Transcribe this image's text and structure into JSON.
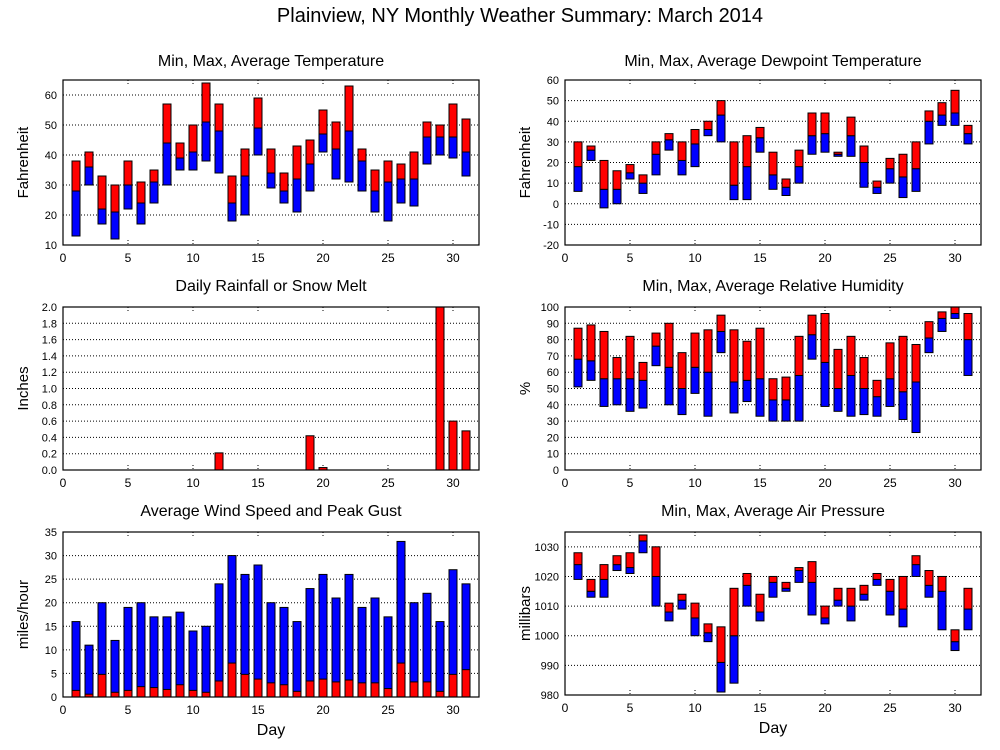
{
  "title": "Plainview, NY Monthly Weather Summary: March 2014",
  "colors": {
    "high": "#ff0000",
    "low": "#0000ff",
    "outline": "#000000",
    "grid": "#000000"
  },
  "chart_data": [
    {
      "id": "temperature",
      "type": "bar",
      "subtype": "floating-range",
      "title": "Min, Max, Average Temperature",
      "xlabel": "",
      "ylabel": "Fahrenheit",
      "xlim": [
        0,
        32
      ],
      "ylim": [
        10,
        65
      ],
      "xticks": [
        0,
        5,
        10,
        15,
        20,
        25,
        30
      ],
      "yticks": [
        10,
        20,
        30,
        40,
        50,
        60
      ],
      "grid": true,
      "x": [
        1,
        2,
        3,
        4,
        5,
        6,
        7,
        8,
        9,
        10,
        11,
        12,
        13,
        14,
        15,
        16,
        17,
        18,
        19,
        20,
        21,
        22,
        23,
        24,
        25,
        26,
        27,
        28,
        29,
        30,
        31
      ],
      "series": [
        {
          "name": "Min",
          "values": [
            13,
            30,
            17,
            12,
            22,
            17,
            24,
            30,
            35,
            35,
            38,
            34,
            18,
            20,
            40,
            29,
            24,
            21,
            28,
            41,
            32,
            31,
            28,
            21,
            18,
            24,
            23,
            37,
            40,
            39,
            33
          ]
        },
        {
          "name": "Average",
          "values": [
            28,
            36,
            22,
            21,
            30,
            24,
            31,
            44,
            39,
            41,
            51,
            48,
            24,
            33,
            49,
            34,
            28,
            32,
            37,
            47,
            42,
            48,
            38,
            28,
            31,
            32,
            32,
            46,
            46,
            46,
            41
          ]
        },
        {
          "name": "Max",
          "values": [
            38,
            41,
            33,
            30,
            38,
            31,
            35,
            57,
            44,
            50,
            64,
            57,
            33,
            42,
            59,
            42,
            34,
            43,
            45,
            55,
            51,
            63,
            42,
            35,
            38,
            37,
            41,
            51,
            50,
            57,
            52
          ]
        }
      ]
    },
    {
      "id": "dewpoint",
      "type": "bar",
      "subtype": "floating-range",
      "title": "Min, Max, Average Dewpoint Temperature",
      "xlabel": "",
      "ylabel": "Fahrenheit",
      "xlim": [
        0,
        32
      ],
      "ylim": [
        -20,
        60
      ],
      "xticks": [
        0,
        5,
        10,
        15,
        20,
        25,
        30
      ],
      "yticks": [
        -20,
        -10,
        0,
        10,
        20,
        30,
        40,
        50,
        60
      ],
      "grid": true,
      "x": [
        1,
        2,
        3,
        4,
        5,
        6,
        7,
        8,
        9,
        10,
        11,
        12,
        13,
        14,
        15,
        16,
        17,
        18,
        19,
        20,
        21,
        22,
        23,
        24,
        25,
        26,
        27,
        28,
        29,
        30,
        31
      ],
      "series": [
        {
          "name": "Min",
          "values": [
            6,
            21,
            -2,
            0,
            12,
            5,
            14,
            26,
            14,
            18,
            33,
            30,
            2,
            2,
            25,
            7,
            4,
            10,
            24,
            25,
            23,
            23,
            8,
            5,
            10,
            3,
            6,
            29,
            38,
            38,
            29
          ]
        },
        {
          "name": "Average",
          "values": [
            18,
            26,
            7,
            7,
            15,
            10,
            24,
            31,
            21,
            29,
            36,
            43,
            9,
            18,
            32,
            14,
            8,
            18,
            33,
            34,
            24,
            33,
            20,
            8,
            17,
            13,
            17,
            40,
            43,
            44,
            34
          ]
        },
        {
          "name": "Max",
          "values": [
            30,
            28,
            21,
            16,
            19,
            14,
            30,
            34,
            30,
            36,
            40,
            50,
            30,
            33,
            37,
            25,
            12,
            26,
            44,
            44,
            25,
            42,
            28,
            11,
            22,
            24,
            30,
            45,
            49,
            55,
            38
          ]
        }
      ]
    },
    {
      "id": "rainfall",
      "type": "bar",
      "title": "Daily Rainfall or Snow Melt",
      "xlabel": "",
      "ylabel": "Inches",
      "xlim": [
        0,
        32
      ],
      "ylim": [
        0,
        2.0
      ],
      "xticks": [
        0,
        5,
        10,
        15,
        20,
        25,
        30
      ],
      "yticks": [
        0.0,
        0.2,
        0.4,
        0.6,
        0.8,
        1.0,
        1.2,
        1.4,
        1.6,
        1.8,
        2.0
      ],
      "grid": true,
      "x": [
        12,
        19,
        20,
        29,
        30,
        31
      ],
      "values": [
        0.21,
        0.42,
        0.03,
        2.0,
        0.6,
        0.48
      ]
    },
    {
      "id": "humidity",
      "type": "bar",
      "subtype": "floating-range",
      "title": "Min, Max, Average Relative Humidity",
      "xlabel": "",
      "ylabel": "%",
      "xlim": [
        0,
        32
      ],
      "ylim": [
        0,
        100
      ],
      "xticks": [
        0,
        5,
        10,
        15,
        20,
        25,
        30
      ],
      "yticks": [
        0,
        10,
        20,
        30,
        40,
        50,
        60,
        70,
        80,
        90,
        100
      ],
      "grid": true,
      "x": [
        1,
        2,
        3,
        4,
        5,
        6,
        7,
        8,
        9,
        10,
        11,
        12,
        13,
        14,
        15,
        16,
        17,
        18,
        19,
        20,
        21,
        22,
        23,
        24,
        25,
        26,
        27,
        28,
        29,
        30,
        31
      ],
      "series": [
        {
          "name": "Min",
          "values": [
            51,
            55,
            39,
            40,
            36,
            38,
            64,
            40,
            34,
            47,
            33,
            72,
            35,
            42,
            33,
            30,
            30,
            30,
            68,
            39,
            36,
            33,
            34,
            33,
            39,
            31,
            23,
            72,
            85,
            93,
            58
          ]
        },
        {
          "name": "Average",
          "values": [
            68,
            67,
            56,
            56,
            56,
            55,
            76,
            63,
            50,
            63,
            60,
            85,
            54,
            55,
            56,
            43,
            43,
            58,
            83,
            66,
            50,
            58,
            50,
            45,
            56,
            48,
            54,
            81,
            93,
            96,
            80
          ]
        },
        {
          "name": "Max",
          "values": [
            87,
            89,
            85,
            69,
            82,
            66,
            84,
            90,
            72,
            84,
            86,
            95,
            86,
            79,
            87,
            56,
            57,
            82,
            95,
            96,
            74,
            82,
            69,
            55,
            78,
            82,
            77,
            91,
            97,
            100,
            96
          ]
        }
      ]
    },
    {
      "id": "wind",
      "type": "bar",
      "subtype": "overlaid",
      "title": "Average Wind Speed and Peak Gust",
      "xlabel": "Day",
      "ylabel": "miles/hour",
      "xlim": [
        0,
        32
      ],
      "ylim": [
        0,
        35
      ],
      "xticks": [
        0,
        5,
        10,
        15,
        20,
        25,
        30
      ],
      "yticks": [
        0,
        5,
        10,
        15,
        20,
        25,
        30,
        35
      ],
      "grid": true,
      "x": [
        1,
        2,
        3,
        4,
        5,
        6,
        7,
        8,
        9,
        10,
        11,
        12,
        13,
        14,
        15,
        16,
        17,
        18,
        19,
        20,
        21,
        22,
        23,
        24,
        25,
        26,
        27,
        28,
        29,
        30,
        31
      ],
      "series": [
        {
          "name": "Peak Gust",
          "values": [
            16,
            11,
            20,
            12,
            19,
            20,
            17,
            17,
            18,
            14,
            15,
            24,
            30,
            26,
            28,
            20,
            19,
            16,
            23,
            26,
            21,
            26,
            19,
            21,
            17,
            33,
            20,
            22,
            16,
            27,
            24
          ]
        },
        {
          "name": "Average Wind Speed",
          "values": [
            1.4,
            0.6,
            4.8,
            1.0,
            1.4,
            2.2,
            2.0,
            1.6,
            2.6,
            1.4,
            1.0,
            3.4,
            7.2,
            4.8,
            3.8,
            3.0,
            2.6,
            1.2,
            3.4,
            3.8,
            3.2,
            3.6,
            3.0,
            3.0,
            1.8,
            7.2,
            3.2,
            3.2,
            1.2,
            4.8,
            5.8
          ]
        }
      ]
    },
    {
      "id": "pressure",
      "type": "bar",
      "subtype": "floating-range",
      "title": "Min, Max, Average Air Pressure",
      "xlabel": "Day",
      "ylabel": "millibars",
      "xlim": [
        0,
        32
      ],
      "ylim": [
        980,
        1035
      ],
      "xticks": [
        0,
        5,
        10,
        15,
        20,
        25,
        30
      ],
      "yticks": [
        980,
        990,
        1000,
        1010,
        1020,
        1030
      ],
      "grid": true,
      "x": [
        1,
        2,
        3,
        4,
        5,
        6,
        7,
        8,
        9,
        10,
        11,
        12,
        13,
        14,
        15,
        16,
        17,
        18,
        19,
        20,
        21,
        22,
        23,
        24,
        25,
        26,
        27,
        28,
        29,
        30,
        31
      ],
      "series": [
        {
          "name": "Min",
          "values": [
            1019,
            1013,
            1013,
            1022,
            1021,
            1028,
            1010,
            1005,
            1009,
            1000,
            998,
            981,
            984,
            1010,
            1005,
            1013,
            1015,
            1018,
            1007,
            1004,
            1010,
            1005,
            1012,
            1017,
            1007,
            1003,
            1020,
            1013,
            1002,
            995,
            1002
          ]
        },
        {
          "name": "Average",
          "values": [
            1024,
            1015,
            1019,
            1024,
            1023,
            1032,
            1020,
            1008,
            1012,
            1006,
            1001,
            991,
            1000,
            1017,
            1008,
            1018,
            1016,
            1022,
            1018,
            1006,
            1012,
            1010,
            1014,
            1019,
            1015,
            1009,
            1024,
            1017,
            1015,
            998,
            1009
          ]
        },
        {
          "name": "Max",
          "values": [
            1028,
            1019,
            1024,
            1027,
            1028,
            1034,
            1030,
            1011,
            1014,
            1011,
            1004,
            1003,
            1016,
            1021,
            1014,
            1020,
            1018,
            1023,
            1025,
            1010,
            1016,
            1016,
            1017,
            1021,
            1019,
            1020,
            1027,
            1022,
            1020,
            1002,
            1016
          ]
        }
      ]
    }
  ]
}
